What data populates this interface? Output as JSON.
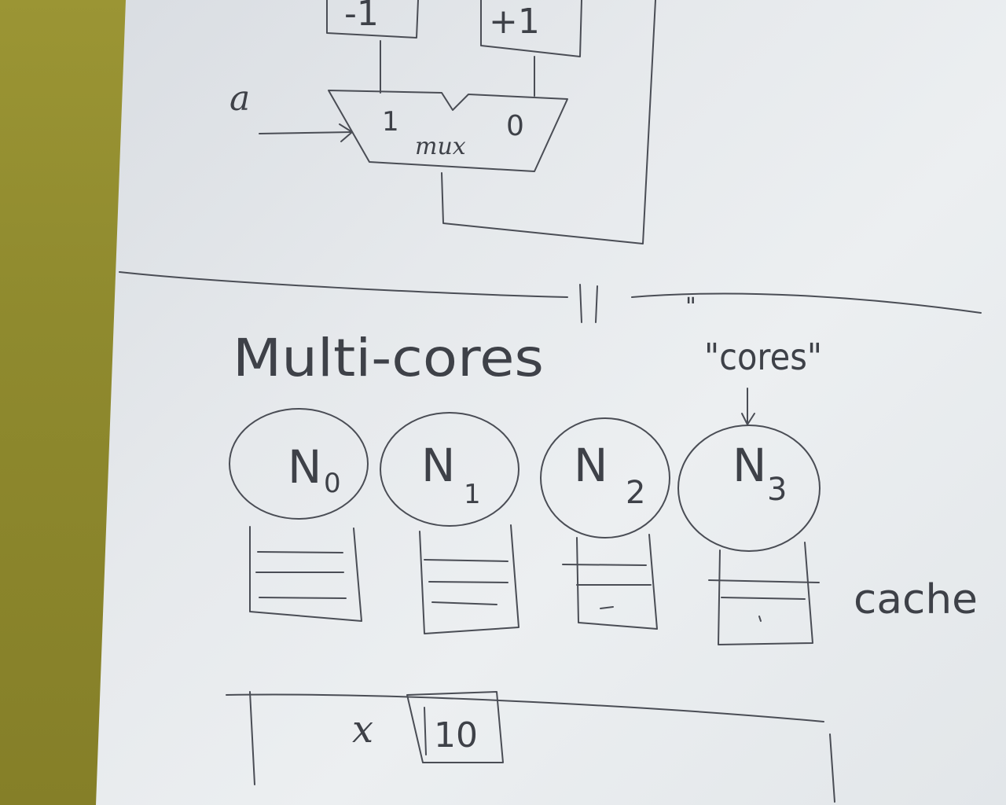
{
  "top_circuit": {
    "top_left_box_label": "-1",
    "top_right_box_label": "+1",
    "mux_input_label": "a",
    "mux_port_1": "1",
    "mux_port_0": "0",
    "mux_label": "mux"
  },
  "separator": {
    "equivalence_mark": "= \"",
    "quote_mark": "\""
  },
  "multicore": {
    "title": "Multi-cores",
    "annotation": "\"cores\"",
    "cache_label": "cache",
    "cores": [
      {
        "name": "N",
        "sub": "0"
      },
      {
        "name": "N",
        "sub": "1"
      },
      {
        "name": "N",
        "sub": "2"
      },
      {
        "name": "N",
        "sub": "3"
      }
    ]
  },
  "memory": {
    "var_name": "x",
    "value": "10"
  }
}
